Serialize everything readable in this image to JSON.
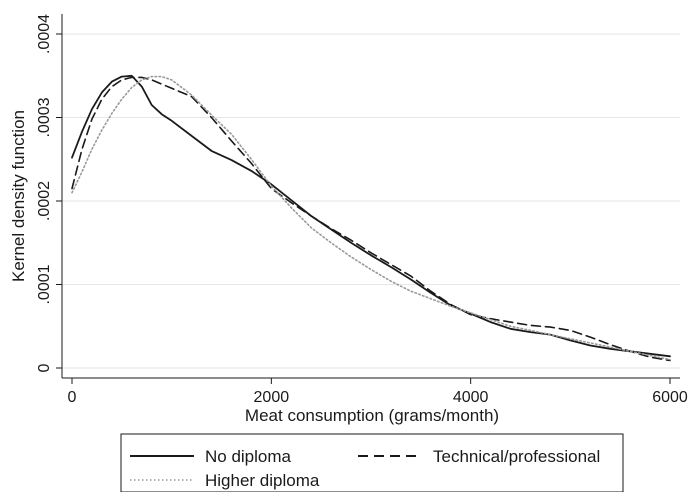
{
  "chart_data": {
    "type": "line",
    "title": "",
    "xlabel": "Meat consumption (grams/month)",
    "ylabel": "Kernel density function",
    "xlim": [
      0,
      6000
    ],
    "ylim": [
      0,
      0.0004
    ],
    "x_ticks": [
      0,
      2000,
      4000,
      6000
    ],
    "x_tick_labels": [
      "0",
      "2000",
      "4000",
      "6000"
    ],
    "y_ticks": [
      0,
      0.0001,
      0.0002,
      0.0003,
      0.0004
    ],
    "y_tick_labels": [
      "0",
      ".0001",
      ".0002",
      ".0003",
      ".0004"
    ],
    "grid": "horizontal",
    "legend_position": "bottom",
    "series": [
      {
        "name": "No diploma",
        "style": "solid",
        "color": "#1a1a1a",
        "x": [
          0,
          100,
          200,
          300,
          400,
          500,
          600,
          700,
          800,
          900,
          1000,
          1200,
          1400,
          1600,
          1800,
          2000,
          2200,
          2400,
          2600,
          2800,
          3000,
          3200,
          3400,
          3600,
          3800,
          4000,
          4200,
          4400,
          4600,
          4800,
          5000,
          5200,
          5400,
          5600,
          5800,
          6000
        ],
        "y": [
          0.000252,
          0.000283,
          0.00031,
          0.00033,
          0.000343,
          0.000349,
          0.00035,
          0.000337,
          0.000315,
          0.000304,
          0.000296,
          0.000278,
          0.00026,
          0.000249,
          0.000236,
          0.00022,
          0.000201,
          0.000182,
          0.000166,
          0.00015,
          0.000135,
          0.000121,
          0.000106,
          9e-05,
          7.5e-05,
          6.5e-05,
          5.5e-05,
          4.7e-05,
          4.3e-05,
          4e-05,
          3.3e-05,
          2.7e-05,
          2.3e-05,
          2e-05,
          1.7e-05,
          1.4e-05
        ]
      },
      {
        "name": "Technical/professional",
        "style": "dashed",
        "color": "#1a1a1a",
        "x": [
          0,
          100,
          200,
          300,
          400,
          500,
          600,
          700,
          800,
          900,
          1000,
          1200,
          1400,
          1600,
          1800,
          2000,
          2200,
          2400,
          2600,
          2800,
          3000,
          3200,
          3400,
          3600,
          3800,
          4000,
          4200,
          4400,
          4600,
          4800,
          5000,
          5200,
          5400,
          5600,
          5800,
          6000
        ],
        "y": [
          0.000215,
          0.000262,
          0.000298,
          0.000322,
          0.000337,
          0.000345,
          0.000348,
          0.000348,
          0.000345,
          0.00034,
          0.000335,
          0.000325,
          0.0003,
          0.000272,
          0.000245,
          0.000215,
          0.000198,
          0.000182,
          0.000167,
          0.000153,
          0.000138,
          0.000124,
          0.00011,
          9.2e-05,
          7.6e-05,
          6.4e-05,
          5.9e-05,
          5.5e-05,
          5.1e-05,
          4.9e-05,
          4.5e-05,
          3.7e-05,
          2.8e-05,
          2e-05,
          1.3e-05,
          9e-06
        ]
      },
      {
        "name": "Higher diploma",
        "style": "dotted",
        "color": "#999999",
        "x": [
          0,
          100,
          200,
          300,
          400,
          500,
          600,
          700,
          800,
          900,
          1000,
          1200,
          1400,
          1600,
          1800,
          2000,
          2200,
          2400,
          2600,
          2800,
          3000,
          3200,
          3400,
          3600,
          3800,
          4000,
          4200,
          4400,
          4600,
          4800,
          5000,
          5200,
          5400,
          5600,
          5800,
          6000
        ],
        "y": [
          0.00021,
          0.000235,
          0.000262,
          0.000285,
          0.000305,
          0.000322,
          0.000336,
          0.000345,
          0.000349,
          0.000349,
          0.000345,
          0.000327,
          0.000303,
          0.00028,
          0.00025,
          0.000218,
          0.000192,
          0.000168,
          0.00015,
          0.000133,
          0.000118,
          0.000104,
          9.2e-05,
          8.3e-05,
          7.4e-05,
          6.6e-05,
          5.8e-05,
          5e-05,
          4.5e-05,
          4e-05,
          3.5e-05,
          3e-05,
          2.5e-05,
          2e-05,
          1.5e-05,
          1e-05
        ]
      }
    ]
  }
}
